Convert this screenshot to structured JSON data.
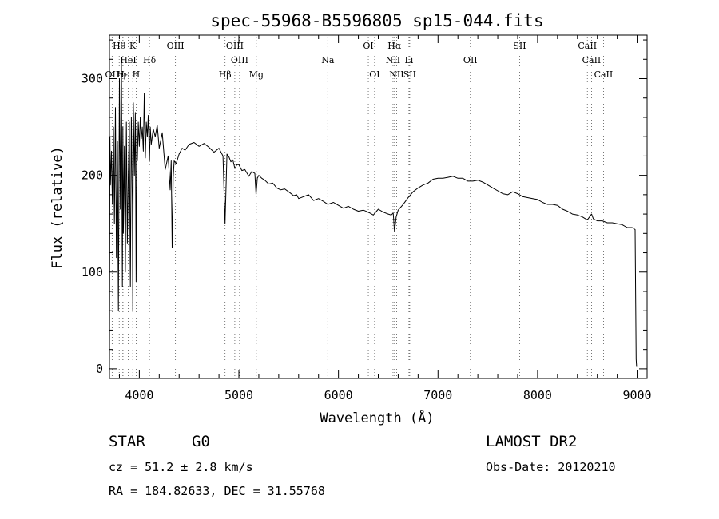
{
  "chart_data": {
    "type": "line",
    "title": "spec-55968-B5596805_sp15-044.fits",
    "xlabel": "Wavelength (Å)",
    "ylabel": "Flux (relative)",
    "xlim": [
      3700,
      9100
    ],
    "ylim": [
      -10,
      345
    ],
    "xticks": [
      4000,
      5000,
      6000,
      7000,
      8000,
      9000
    ],
    "yticks": [
      0,
      100,
      200,
      300
    ],
    "grid": false,
    "series": [
      {
        "color": "#000000",
        "x": [
          3700,
          3705,
          3710,
          3720,
          3730,
          3740,
          3750,
          3760,
          3770,
          3780,
          3790,
          3800,
          3810,
          3820,
          3830,
          3835,
          3840,
          3850,
          3860,
          3870,
          3880,
          3889,
          3900,
          3910,
          3920,
          3930,
          3934,
          3940,
          3950,
          3960,
          3968,
          3975,
          3980,
          3990,
          4000,
          4010,
          4020,
          4030,
          4040,
          4050,
          4060,
          4070,
          4080,
          4090,
          4102,
          4110,
          4120,
          4140,
          4160,
          4180,
          4200,
          4230,
          4260,
          4290,
          4310,
          4320,
          4330,
          4340,
          4350,
          4370,
          4400,
          4430,
          4460,
          4500,
          4550,
          4600,
          4650,
          4700,
          4750,
          4800,
          4840,
          4861,
          4880,
          4900,
          4920,
          4940,
          4960,
          4980,
          5000,
          5030,
          5060,
          5100,
          5130,
          5160,
          5172,
          5185,
          5200,
          5230,
          5260,
          5300,
          5340,
          5380,
          5420,
          5460,
          5500,
          5550,
          5580,
          5600,
          5650,
          5700,
          5750,
          5800,
          5850,
          5893,
          5950,
          6000,
          6050,
          6100,
          6150,
          6200,
          6250,
          6300,
          6350,
          6400,
          6450,
          6500,
          6530,
          6550,
          6563,
          6580,
          6600,
          6650,
          6700,
          6750,
          6800,
          6850,
          6900,
          6950,
          7000,
          7050,
          7100,
          7150,
          7200,
          7250,
          7300,
          7350,
          7400,
          7450,
          7500,
          7550,
          7600,
          7650,
          7700,
          7750,
          7800,
          7850,
          7900,
          7950,
          8000,
          8050,
          8100,
          8150,
          8200,
          8250,
          8300,
          8350,
          8400,
          8450,
          8500,
          8542,
          8560,
          8600,
          8650,
          8700,
          8750,
          8800,
          8850,
          8900,
          8950,
          8980,
          8990,
          8995
        ],
        "y": [
          2,
          240,
          190,
          225,
          170,
          250,
          150,
          270,
          115,
          235,
          60,
          300,
          165,
          320,
          85,
          250,
          140,
          230,
          100,
          255,
          130,
          200,
          255,
          85,
          260,
          170,
          60,
          275,
          200,
          265,
          90,
          250,
          215,
          255,
          230,
          260,
          238,
          250,
          225,
          285,
          218,
          255,
          240,
          262,
          215,
          250,
          232,
          248,
          240,
          252,
          228,
          244,
          206,
          220,
          185,
          215,
          125,
          198,
          215,
          212,
          222,
          228,
          226,
          232,
          234,
          230,
          233,
          229,
          224,
          228,
          220,
          150,
          222,
          219,
          214,
          216,
          207,
          211,
          211,
          205,
          206,
          199,
          204,
          202,
          180,
          197,
          200,
          197,
          195,
          191,
          192,
          187,
          185,
          186,
          183,
          179,
          180,
          176,
          178,
          180,
          174,
          176,
          173,
          170,
          172,
          169,
          166,
          168,
          165,
          163,
          164,
          162,
          159,
          165,
          162,
          160,
          159,
          161,
          142,
          157,
          164,
          170,
          177,
          183,
          187,
          190,
          192,
          196,
          197,
          197,
          198,
          199,
          197,
          197,
          194,
          194,
          195,
          193,
          190,
          187,
          184,
          181,
          180,
          183,
          181,
          178,
          177,
          176,
          175,
          172,
          170,
          170,
          169,
          165,
          163,
          160,
          159,
          157,
          154,
          160,
          155,
          153,
          153,
          151,
          151,
          150,
          149,
          146,
          146,
          144,
          10,
          2
        ]
      }
    ],
    "spectral_lines": [
      {
        "label": "Hθ",
        "x": 3798,
        "row": 0
      },
      {
        "label": "K",
        "x": 3934,
        "row": 0
      },
      {
        "label": "OIII",
        "x": 4363,
        "row": 0
      },
      {
        "label": "OIII",
        "x": 4959,
        "row": 0
      },
      {
        "label": "OI",
        "x": 6300,
        "row": 0
      },
      {
        "label": "Hα",
        "x": 6563,
        "row": 0
      },
      {
        "label": "SII",
        "x": 7820,
        "row": 0
      },
      {
        "label": "CaII",
        "x": 8500,
        "row": 0
      },
      {
        "label": "HeI",
        "x": 3889,
        "row": 1
      },
      {
        "label": "Hδ",
        "x": 4102,
        "row": 1
      },
      {
        "label": "OIII",
        "x": 5007,
        "row": 1
      },
      {
        "label": "Na",
        "x": 5893,
        "row": 1
      },
      {
        "label": "NII",
        "x": 6548,
        "row": 1
      },
      {
        "label": "Li",
        "x": 6708,
        "row": 1
      },
      {
        "label": "OII",
        "x": 7325,
        "row": 1
      },
      {
        "label": "CaII",
        "x": 8542,
        "row": 1
      },
      {
        "label": "OII",
        "x": 3727,
        "row": 2
      },
      {
        "label": "Hε",
        "x": 3835,
        "row": 2
      },
      {
        "label": "η",
        "x": 3835,
        "row": 2
      },
      {
        "label": "H",
        "x": 3968,
        "row": 2
      },
      {
        "label": "Hβ",
        "x": 4861,
        "row": 2
      },
      {
        "label": "Mg",
        "x": 5175,
        "row": 2
      },
      {
        "label": "OI",
        "x": 6363,
        "row": 2
      },
      {
        "label": "NII",
        "x": 6584,
        "row": 2
      },
      {
        "label": "SII",
        "x": 6716,
        "row": 2
      },
      {
        "label": "CaII",
        "x": 8662,
        "row": 2
      }
    ]
  },
  "footer": {
    "object_class": "STAR",
    "subclass": "G0",
    "survey": "LAMOST DR2",
    "cz": "cz = 51.2 ± 2.8 km/s",
    "obs_date": "Obs-Date: 20120210",
    "coords": "RA = 184.82633, DEC =  31.55768"
  }
}
